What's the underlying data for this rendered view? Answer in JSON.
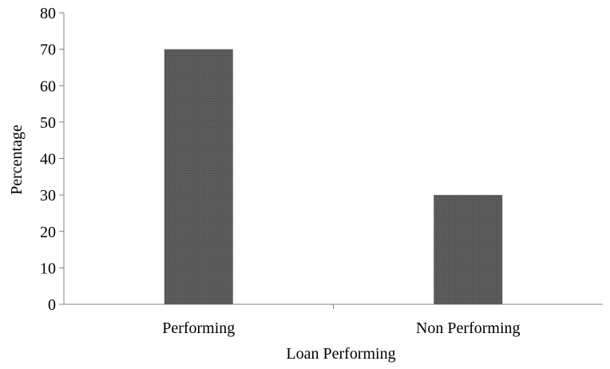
{
  "chart_data": {
    "type": "bar",
    "title": "",
    "xlabel": "Loan Performing",
    "ylabel": "Percentage",
    "categories": [
      "Performing",
      "Non Performing"
    ],
    "values": [
      70,
      30
    ],
    "ylim": [
      0,
      80
    ],
    "yticks": [
      "0",
      "10",
      "20",
      "30",
      "40",
      "50",
      "60",
      "70",
      "80"
    ],
    "grid": false,
    "legend": "none",
    "bar_color": "#555555"
  }
}
